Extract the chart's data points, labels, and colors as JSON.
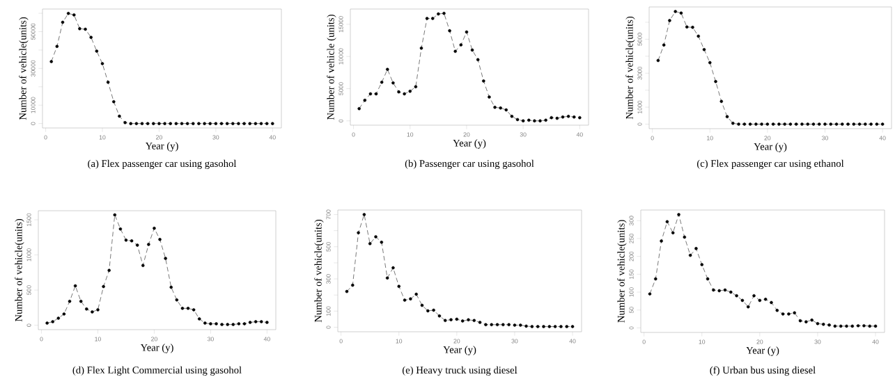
{
  "chart_data": [
    {
      "type": "line",
      "title": "(a) Flex passenger car using gasohol",
      "xlabel": "Year (y)",
      "ylabel": "Number of vehicle(units)",
      "x": [
        1,
        2,
        3,
        4,
        5,
        6,
        7,
        8,
        9,
        10,
        11,
        12,
        13,
        14,
        15,
        16,
        17,
        18,
        19,
        20,
        21,
        22,
        23,
        24,
        25,
        26,
        27,
        28,
        29,
        30,
        31,
        32,
        33,
        34,
        35,
        36,
        37,
        38,
        39,
        40
      ],
      "series": [
        {
          "color": "#000000",
          "values": [
            33700,
            42000,
            55100,
            59900,
            59100,
            51600,
            51300,
            46900,
            39400,
            32600,
            22500,
            11900,
            4000,
            500,
            0,
            0,
            0,
            0,
            0,
            0,
            0,
            0,
            0,
            0,
            0,
            0,
            0,
            0,
            0,
            0,
            0,
            0,
            0,
            0,
            0,
            0,
            0,
            0,
            0,
            0
          ]
        }
      ],
      "xlim": [
        -0.56,
        41.56
      ],
      "ylim": [
        -2400,
        62300
      ],
      "xticks": [
        0,
        10,
        20,
        30,
        40
      ],
      "yticks": [
        0,
        10000,
        {
          "value": 20000,
          "label": null
        },
        30000,
        {
          "value": 40000,
          "label": null
        },
        50000,
        {
          "value": 60000,
          "label": null
        }
      ],
      "marker": "circle",
      "line_style": "dashed"
    },
    {
      "type": "line",
      "title": "(b) Passenger car using gasohol",
      "xlabel": "Year (y)",
      "ylabel": "Number of vehicle (units)",
      "x": [
        1,
        2,
        3,
        4,
        5,
        6,
        7,
        8,
        9,
        10,
        11,
        12,
        13,
        14,
        15,
        16,
        17,
        18,
        19,
        20,
        21,
        22,
        23,
        24,
        25,
        26,
        27,
        28,
        29,
        30,
        31,
        32,
        33,
        34,
        35,
        36,
        37,
        38,
        39,
        40
      ],
      "series": [
        {
          "color": "#000000",
          "values": [
            1900,
            3200,
            4200,
            4200,
            6000,
            8000,
            5900,
            4500,
            4200,
            4600,
            5300,
            11300,
            15900,
            15900,
            16600,
            16700,
            14000,
            10800,
            11800,
            13800,
            11000,
            9500,
            6200,
            3700,
            2100,
            2000,
            1700,
            700,
            200,
            0,
            100,
            0,
            0,
            100,
            500,
            400,
            600,
            700,
            600,
            500
          ]
        }
      ],
      "xlim": [
        -0.56,
        41.56
      ],
      "ylim": [
        -670,
        17370
      ],
      "xticks": [
        0,
        10,
        20,
        30,
        40
      ],
      "yticks": [
        0,
        5000,
        10000,
        15000
      ],
      "marker": "circle",
      "line_style": "dashed"
    },
    {
      "type": "line",
      "title": "(c) Flex passenger car using ethanol",
      "xlabel": "Year (y)",
      "ylabel": "Number of vehicle(units)",
      "x": [
        1,
        2,
        3,
        4,
        5,
        6,
        7,
        8,
        9,
        10,
        11,
        12,
        13,
        14,
        15,
        16,
        17,
        18,
        19,
        20,
        21,
        22,
        23,
        24,
        25,
        26,
        27,
        28,
        29,
        30,
        31,
        32,
        33,
        34,
        35,
        36,
        37,
        38,
        39,
        40
      ],
      "series": [
        {
          "color": "#000000",
          "values": [
            3750,
            4660,
            6100,
            6630,
            6540,
            5720,
            5700,
            5180,
            4390,
            3620,
            2510,
            1340,
            440,
            50,
            0,
            0,
            0,
            0,
            0,
            0,
            0,
            0,
            0,
            0,
            0,
            0,
            0,
            0,
            0,
            0,
            0,
            0,
            0,
            0,
            0,
            0,
            0,
            0,
            0,
            0
          ]
        }
      ],
      "xlim": [
        -0.56,
        41.56
      ],
      "ylim": [
        -265,
        6900
      ],
      "xticks": [
        0,
        10,
        20,
        30,
        40
      ],
      "yticks": [
        0,
        1000,
        {
          "value": 2000,
          "label": null
        },
        3000,
        {
          "value": 4000,
          "label": null
        },
        5000,
        {
          "value": 6000,
          "label": null
        }
      ],
      "marker": "circle",
      "line_style": "dashed"
    },
    {
      "type": "line",
      "title": "(d) Flex Light Commercial using gasohol",
      "xlabel": "Year (y)",
      "ylabel": "Number of vehicle(units)",
      "x": [
        1,
        2,
        3,
        4,
        5,
        6,
        7,
        8,
        9,
        10,
        11,
        12,
        13,
        14,
        15,
        16,
        17,
        18,
        19,
        20,
        21,
        22,
        23,
        24,
        25,
        26,
        27,
        28,
        29,
        30,
        31,
        32,
        33,
        34,
        35,
        36,
        37,
        38,
        39,
        40
      ],
      "series": [
        {
          "color": "#000000",
          "values": [
            30,
            50,
            100,
            160,
            340,
            560,
            340,
            230,
            190,
            220,
            550,
            780,
            1570,
            1370,
            1210,
            1200,
            1140,
            850,
            1150,
            1380,
            1220,
            950,
            540,
            360,
            240,
            240,
            220,
            90,
            30,
            20,
            20,
            10,
            10,
            10,
            20,
            20,
            40,
            50,
            50,
            40
          ]
        }
      ],
      "xlim": [
        -0.56,
        41.56
      ],
      "ylim": [
        -63,
        1629
      ],
      "xticks": [
        0,
        10,
        20,
        30,
        40
      ],
      "yticks": [
        0,
        500,
        1000,
        1500
      ],
      "marker": "circle",
      "line_style": "dashed"
    },
    {
      "type": "line",
      "title": "(e) Heavy truck using diesel",
      "xlabel": "Year (y)",
      "ylabel": "Number of vehicle(units)",
      "x": [
        1,
        2,
        3,
        4,
        5,
        6,
        7,
        8,
        9,
        10,
        11,
        12,
        13,
        14,
        15,
        16,
        17,
        18,
        19,
        20,
        21,
        22,
        23,
        24,
        25,
        26,
        27,
        28,
        29,
        30,
        31,
        32,
        33,
        34,
        35,
        36,
        37,
        38,
        39,
        40
      ],
      "series": [
        {
          "color": "#000000",
          "values": [
            222,
            261,
            587,
            700,
            519,
            562,
            528,
            306,
            369,
            254,
            168,
            176,
            205,
            136,
            102,
            106,
            70,
            42,
            47,
            50,
            39,
            46,
            42,
            30,
            16,
            16,
            16,
            16,
            16,
            13,
            13,
            7,
            4,
            4,
            4,
            4,
            4,
            4,
            4,
            4
          ]
        }
      ],
      "xlim": [
        -0.56,
        41.56
      ],
      "ylim": [
        -28,
        728
      ],
      "xticks": [
        0,
        10,
        20,
        30,
        40
      ],
      "yticks": [
        0,
        100,
        {
          "value": 200,
          "label": null
        },
        300,
        {
          "value": 400,
          "label": null
        },
        500,
        {
          "value": 600,
          "label": null
        },
        700
      ],
      "marker": "circle",
      "line_style": "dashed"
    },
    {
      "type": "line",
      "title": "(f) Urban bus using diesel",
      "xlabel": "Year (y)",
      "ylabel": "Number of vehicle(units)",
      "x": [
        1,
        2,
        3,
        4,
        5,
        6,
        7,
        8,
        9,
        10,
        11,
        12,
        13,
        14,
        15,
        16,
        17,
        18,
        19,
        20,
        21,
        22,
        23,
        24,
        25,
        26,
        27,
        28,
        29,
        30,
        31,
        32,
        33,
        34,
        35,
        36,
        37,
        38,
        39,
        40
      ],
      "series": [
        {
          "color": "#000000",
          "values": [
            95,
            137,
            243,
            297,
            266,
            317,
            254,
            203,
            222,
            177,
            137,
            106,
            104,
            106,
            100,
            90,
            77,
            59,
            90,
            77,
            80,
            71,
            49,
            39,
            39,
            42,
            20,
            17,
            22,
            12,
            10,
            8,
            5,
            5,
            5,
            5,
            6,
            6,
            5,
            5
          ]
        }
      ],
      "xlim": [
        -0.56,
        41.56
      ],
      "ylim": [
        -12.7,
        329.7
      ],
      "xticks": [
        0,
        10,
        20,
        30,
        40
      ],
      "yticks": [
        0,
        50,
        100,
        150,
        200,
        250,
        300
      ],
      "marker": "circle",
      "line_style": "dashed"
    }
  ]
}
